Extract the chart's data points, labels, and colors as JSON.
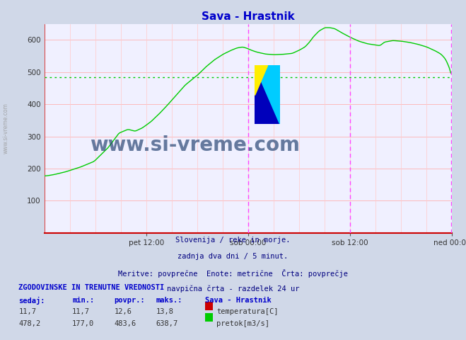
{
  "title": "Sava - Hrastnik",
  "title_color": "#0000cc",
  "bg_color": "#d0d8e8",
  "plot_bg_color": "#f0f0ff",
  "grid_color_h": "#ffaaaa",
  "grid_color_v": "#ffcccc",
  "axis_color": "#cc0000",
  "fig_width": 6.59,
  "fig_height": 4.8,
  "dpi": 100,
  "ylim": [
    0,
    650
  ],
  "yticks": [
    100,
    200,
    300,
    400,
    500,
    600
  ],
  "x_tick_labels": [
    "pet 12:00",
    "sob 00:00",
    "sob 12:00",
    "ned 00:00"
  ],
  "avg_line_value": 483.6,
  "avg_line_color": "#00cc00",
  "watermark": "www.si-vreme.com",
  "watermark_color": "#1a3a6a",
  "footer_lines": [
    "Slovenija / reke in morje.",
    "zadnja dva dni / 5 minut.",
    "Meritve: povprečne  Enote: metrične  Črta: povprečje",
    "navpična črta - razdelek 24 ur"
  ],
  "footer_color": "#000080",
  "table_header": "ZGODOVINSKE IN TRENUTNE VREDNOSTI",
  "table_col_headers": [
    "sedaj:",
    "min.:",
    "povpr.:",
    "maks.:"
  ],
  "table_col_header5": "Sava - Hrastnik",
  "row1_values": [
    "11,7",
    "11,7",
    "12,6",
    "13,8"
  ],
  "row2_values": [
    "478,2",
    "177,0",
    "483,6",
    "638,7"
  ],
  "row1_color": "#cc0000",
  "row2_color": "#00cc00",
  "row1_type": "temperatura[C]",
  "row2_type": "pretok[m3/s]",
  "sidebar_text": "www.si-vreme.com",
  "sidebar_color": "#999999",
  "ctrl_x": [
    0,
    5,
    15,
    30,
    50,
    70,
    90,
    105,
    118,
    128,
    138,
    150,
    162,
    174,
    186,
    198,
    210,
    216,
    228,
    240,
    252,
    263,
    272,
    280,
    286,
    292,
    300,
    312,
    324,
    336,
    350,
    360,
    368,
    374,
    380,
    388,
    396,
    403,
    410,
    420,
    432,
    444,
    456,
    465,
    474,
    480,
    492,
    504,
    516,
    528,
    540,
    552,
    560,
    566,
    570,
    574,
    575
  ],
  "ctrl_y": [
    177,
    178,
    182,
    190,
    204,
    222,
    265,
    310,
    322,
    316,
    326,
    345,
    370,
    398,
    428,
    458,
    480,
    490,
    516,
    538,
    555,
    567,
    575,
    578,
    574,
    568,
    562,
    556,
    554,
    555,
    558,
    568,
    578,
    592,
    610,
    628,
    638,
    638,
    635,
    622,
    608,
    596,
    588,
    585,
    582,
    593,
    598,
    596,
    592,
    586,
    578,
    566,
    556,
    542,
    524,
    500,
    482
  ]
}
